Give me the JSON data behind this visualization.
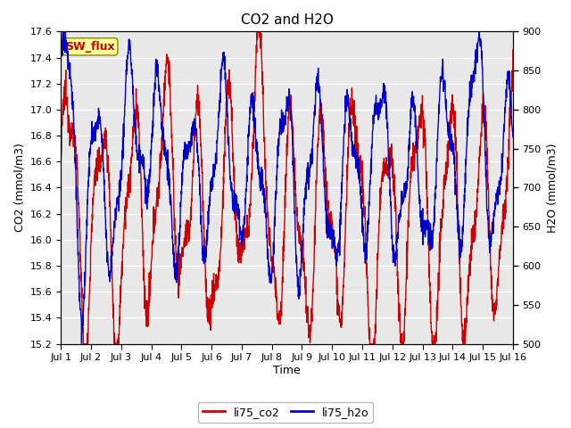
{
  "title": "CO2 and H2O",
  "xlabel": "Time",
  "ylabel_left": "CO2 (mmol/m3)",
  "ylabel_right": "H2O (mmol/m3)",
  "xlim": [
    0,
    15
  ],
  "ylim_left": [
    15.2,
    17.6
  ],
  "ylim_right": [
    500,
    900
  ],
  "xtick_labels": [
    "Jul 1",
    "Jul 2",
    "Jul 3",
    "Jul 4",
    "Jul 5",
    "Jul 6",
    "Jul 7",
    "Jul 8",
    "Jul 9",
    "Jul 10",
    "Jul 11",
    "Jul 12",
    "Jul 13",
    "Jul 14",
    "Jul 15",
    "Jul 16"
  ],
  "xtick_positions": [
    0,
    1,
    2,
    3,
    4,
    5,
    6,
    7,
    8,
    9,
    10,
    11,
    12,
    13,
    14,
    15
  ],
  "co2_color": "#cc0000",
  "h2o_color": "#0000cc",
  "legend_co2": "li75_co2",
  "legend_h2o": "li75_h2o",
  "annotation_text": "SW_flux",
  "annotation_color": "#cc0000",
  "annotation_bg": "#ffff99",
  "fig_bg": "#ffffff",
  "plot_bg": "#e8e8e8",
  "linewidth": 1.0,
  "title_fontsize": 11,
  "axis_fontsize": 9,
  "tick_fontsize": 8,
  "legend_fontsize": 9,
  "annot_fontsize": 9
}
